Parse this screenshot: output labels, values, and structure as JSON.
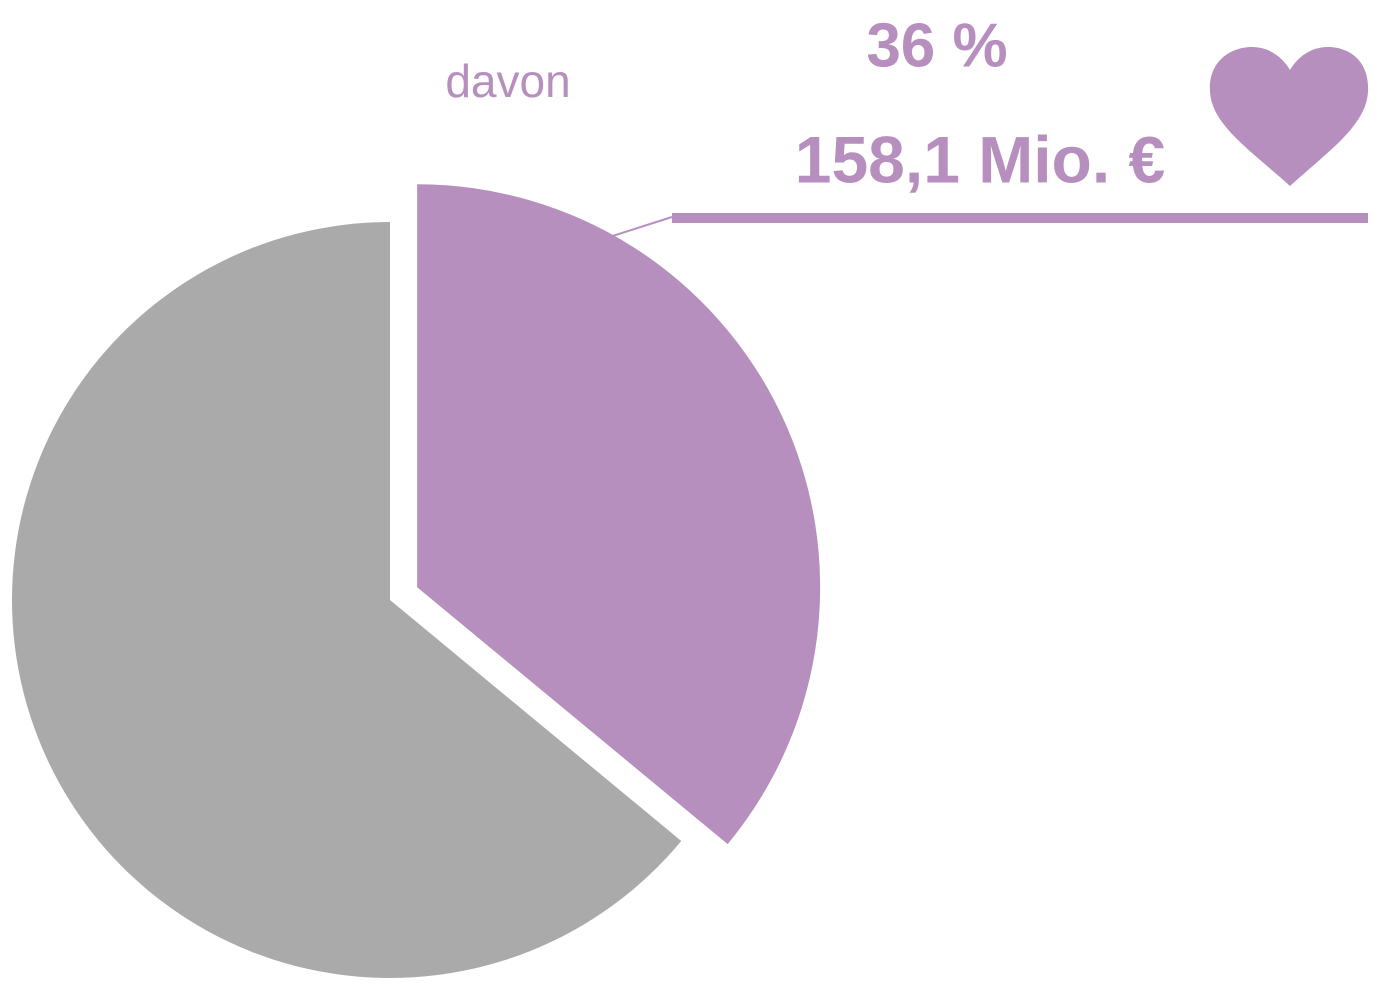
{
  "chart_data": {
    "type": "pie",
    "values": [
      36,
      64
    ],
    "value_labels": [
      "36 %",
      null
    ],
    "colors": [
      "#b68fbe",
      "#aaaaaa"
    ],
    "annotations": [
      "davon",
      "158,1 Mio. €"
    ],
    "label_color": "#b68fbe"
  }
}
